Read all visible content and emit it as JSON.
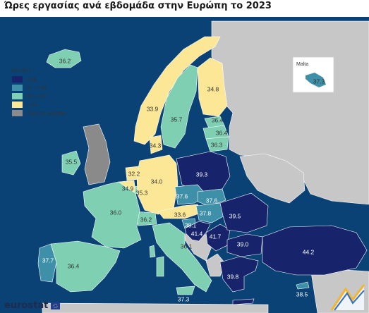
{
  "title": "Ώρες εργασίας ανά εβδομάδα στην Ευρώπη το 2023",
  "colors": {
    "sea": "#0a4275",
    "non_eu": "#c7c7c7",
    "na": "#8a8a8a",
    "c_ge39": "#17246b",
    "c_37_39": "#3e8fa8",
    "c_35_37": "#7fcfb3",
    "c_lt35": "#fbe795",
    "border": "#ffffff"
  },
  "legend": {
    "title": "EU=36.1",
    "items": [
      {
        "label": "≥ 39",
        "color": "#17246b"
      },
      {
        "label": "37 - < 39",
        "color": "#3e8fa8"
      },
      {
        "label": "35 - < 37",
        "color": "#7fcfb3"
      },
      {
        "label": "< 35",
        "color": "#fbe795"
      },
      {
        "label": "Data not available",
        "color": "#8a8a8a"
      }
    ]
  },
  "inset": {
    "name": "Malta",
    "value": "37.3"
  },
  "map_values": {
    "IS": "36.2",
    "NO": "33.9",
    "SE": "35.7",
    "FI": "34.8",
    "EE": "36.4",
    "LV": "36.4",
    "LT": "36.3",
    "IE": "35.5",
    "DK": "34.3",
    "NL": "32.2",
    "BE": "34.9",
    "LU": "35.3",
    "DE": "34.0",
    "PL": "39.3",
    "CZ": "37.6",
    "SK": "37.6",
    "AT": "33.6",
    "CH": "36.2",
    "HU": "37.8",
    "SI": "38.1",
    "HR": "41.4",
    "RO": "39.5",
    "BG": "39.0",
    "RS": "41.7",
    "IT": "36.1",
    "FR": "36.0",
    "PT": "37.7",
    "ES": "36.4",
    "GR": "39.8",
    "TR": "44.2",
    "MT_main": "37.3",
    "CY": "38.5"
  },
  "brand": {
    "name": "eurostat"
  }
}
